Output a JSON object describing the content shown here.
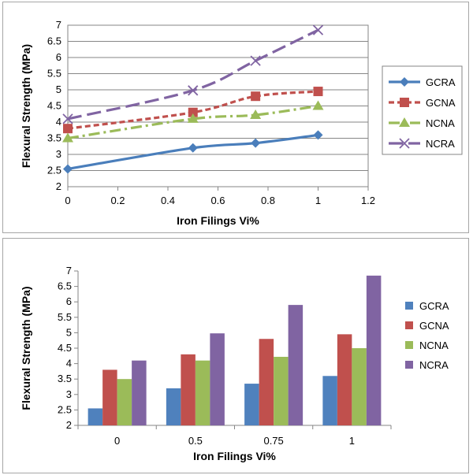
{
  "chart_data": [
    {
      "type": "line",
      "xlabel": "Iron Filings Vi%",
      "ylabel": "Flexural Strength (MPa)",
      "xlim": [
        0,
        1.2
      ],
      "ylim": [
        2,
        7
      ],
      "xticks": [
        0,
        0.2,
        0.4,
        0.6,
        0.8,
        1,
        1.2
      ],
      "xtick_labels": [
        "0",
        "0.2",
        "0.4",
        "0.6",
        "0.8",
        "1",
        "1.2"
      ],
      "yticks": [
        2,
        2.5,
        3,
        3.5,
        4,
        4.5,
        5,
        5.5,
        6,
        6.5,
        7
      ],
      "ytick_labels": [
        "2",
        "2.5",
        "3",
        "3.5",
        "4",
        "4.5",
        "5",
        "5.5",
        "6",
        "6.5",
        "7"
      ],
      "x": [
        0,
        0.5,
        0.75,
        1
      ],
      "legend_position": "right",
      "series": [
        {
          "name": "GCRA",
          "values": [
            2.55,
            3.2,
            3.35,
            3.6
          ],
          "color": "#4a7ebb",
          "marker": "diamond",
          "dash": "solid"
        },
        {
          "name": "GCNA",
          "values": [
            3.8,
            4.3,
            4.8,
            4.95
          ],
          "color": "#c0504d",
          "marker": "square",
          "dash": "short-dash"
        },
        {
          "name": "NCNA",
          "values": [
            3.5,
            4.1,
            4.22,
            4.5
          ],
          "color": "#9bbb59",
          "marker": "triangle",
          "dash": "dash-dot"
        },
        {
          "name": "NCRA",
          "values": [
            4.1,
            4.98,
            5.9,
            6.85
          ],
          "color": "#8064a2",
          "marker": "x",
          "dash": "long-dash"
        }
      ]
    },
    {
      "type": "bar",
      "xlabel": "Iron Filings  Vi%",
      "ylabel": "Flexural Strength (MPa)",
      "ylim": [
        2,
        7
      ],
      "yticks": [
        2,
        2.5,
        3,
        3.5,
        4,
        4.5,
        5,
        5.5,
        6,
        6.5,
        7
      ],
      "ytick_labels": [
        "2",
        "2.5",
        "3",
        "3.5",
        "4",
        "4.5",
        "5",
        "5.5",
        "6",
        "6.5",
        "7"
      ],
      "categories": [
        "0",
        "0.5",
        "0.75",
        "1"
      ],
      "legend_position": "right",
      "series": [
        {
          "name": "GCRA",
          "values": [
            2.55,
            3.2,
            3.35,
            3.6
          ],
          "color": "#4f81bd"
        },
        {
          "name": "GCNA",
          "values": [
            3.8,
            4.3,
            4.8,
            4.95
          ],
          "color": "#c0504d"
        },
        {
          "name": "NCNA",
          "values": [
            3.5,
            4.1,
            4.22,
            4.5
          ],
          "color": "#9bbb59"
        },
        {
          "name": "NCRA",
          "values": [
            4.1,
            4.98,
            5.9,
            6.85
          ],
          "color": "#8064a2"
        }
      ]
    }
  ]
}
